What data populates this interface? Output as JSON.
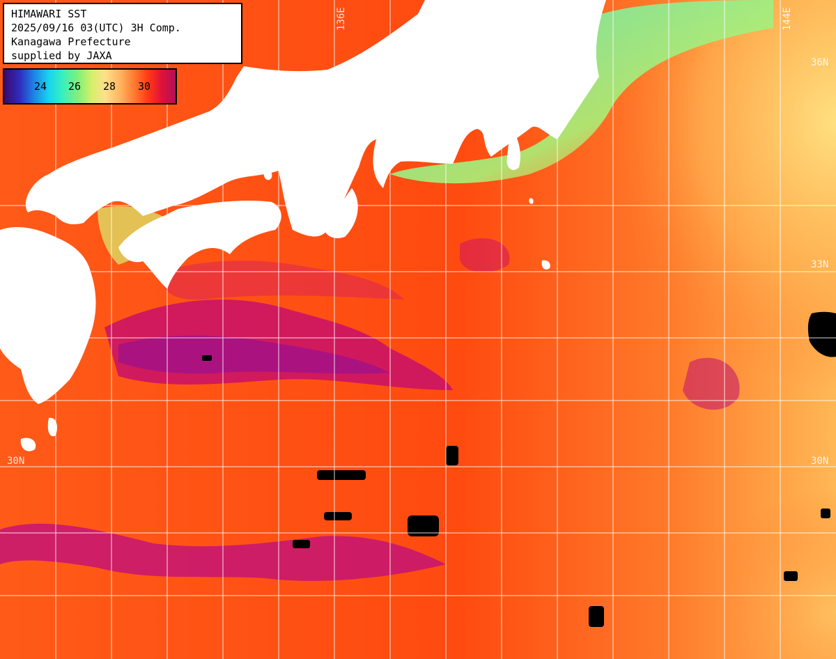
{
  "title_box": {
    "line1": "HIMAWARI SST",
    "line2": "2025/09/16 03(UTC) 3H Comp.",
    "line3": "Kanagawa Prefecture",
    "line4": "supplied by JAXA"
  },
  "legend": {
    "ticks": [
      "24",
      "26",
      "28",
      "30"
    ],
    "colors": [
      "#3a0a6e",
      "#2f2bbd",
      "#1e7fe6",
      "#18d3f0",
      "#38f0bf",
      "#7ff07a",
      "#d5f06a",
      "#ffe08a",
      "#ffb25e",
      "#ff7a30",
      "#ff3a14",
      "#e0113a",
      "#b0105a"
    ]
  },
  "grid": {
    "lon_labels": [
      "136E",
      "144E"
    ],
    "lat_labels": [
      "36N",
      "33N",
      "30N"
    ],
    "line_color": "#ffffff"
  },
  "colors": {
    "land": "#ffffff",
    "no_data": "#000000",
    "warm_sea": "#ff4a12",
    "hot_sea": "#c01070",
    "cool_sea": "#ffb050",
    "coastal_cold": "#7ff0a0"
  }
}
